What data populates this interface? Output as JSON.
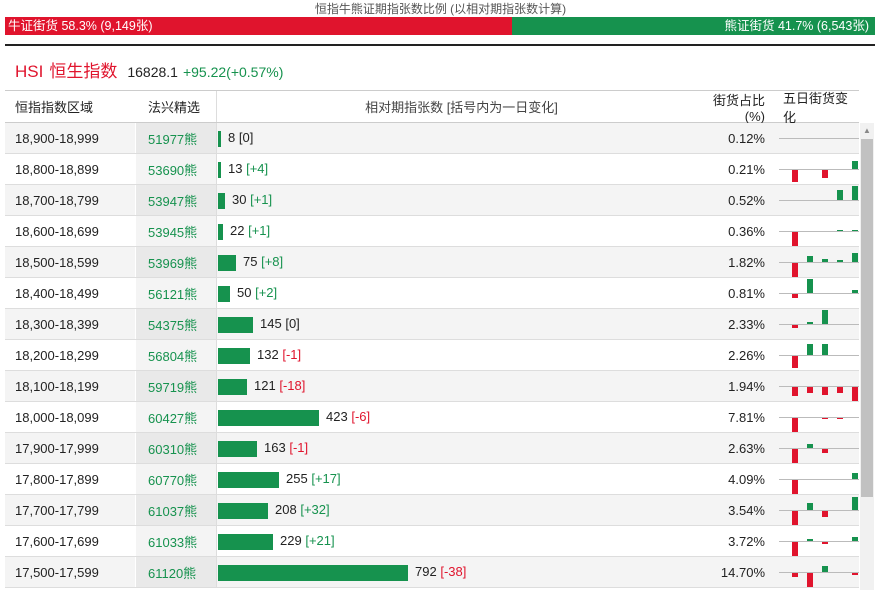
{
  "ratio": {
    "title": "恒指牛熊证期指张数比例 (以相对期指张数计算)",
    "bull_label": "牛证街货 58.3% (9,149张)",
    "bear_label": "熊证街货 41.7% (6,543张)",
    "bull_fraction": 0.583,
    "bull_color": "#e0142d",
    "bear_color": "#16924e"
  },
  "index": {
    "code": "HSI",
    "name": "恒生指数",
    "price": "16828.1",
    "change": "+95.22(+0.57%)"
  },
  "table": {
    "headers": {
      "range": "恒指指数区域",
      "pick": "法兴精选",
      "oi": "相对期指张数 [括号内为一日变化]",
      "share": "街货占比(%)",
      "five_day": "五日街货变化"
    },
    "rows": [
      {
        "range": "18,900-18,999",
        "pick": "51977熊",
        "count": 8,
        "count_text": "8",
        "change": "[0]",
        "change_dir": "flat",
        "share": "0.12%",
        "spark": [
          0,
          0,
          0,
          0,
          0
        ]
      },
      {
        "range": "18,800-18,899",
        "pick": "53690熊",
        "count": 13,
        "count_text": "13",
        "change": "[+4]",
        "change_dir": "up",
        "share": "0.21%",
        "spark": [
          -12,
          0,
          -8,
          0,
          8
        ]
      },
      {
        "range": "18,700-18,799",
        "pick": "53947熊",
        "count": 30,
        "count_text": "30",
        "change": "[+1]",
        "change_dir": "up",
        "share": "0.52%",
        "spark": [
          0,
          0,
          0,
          10,
          14
        ]
      },
      {
        "range": "18,600-18,699",
        "pick": "53945熊",
        "count": 22,
        "count_text": "22",
        "change": "[+1]",
        "change_dir": "up",
        "share": "0.36%",
        "spark": [
          -14,
          0,
          0,
          1,
          1
        ]
      },
      {
        "range": "18,500-18,599",
        "pick": "53969熊",
        "count": 75,
        "count_text": "75",
        "change": "[+8]",
        "change_dir": "up",
        "share": "1.82%",
        "spark": [
          -14,
          6,
          3,
          2,
          9
        ]
      },
      {
        "range": "18,400-18,499",
        "pick": "56121熊",
        "count": 50,
        "count_text": "50",
        "change": "[+2]",
        "change_dir": "up",
        "share": "0.81%",
        "spark": [
          -4,
          14,
          0,
          0,
          3
        ]
      },
      {
        "range": "18,300-18,399",
        "pick": "54375熊",
        "count": 145,
        "count_text": "145",
        "change": "[0]",
        "change_dir": "flat",
        "share": "2.33%",
        "spark": [
          -3,
          2,
          14,
          0,
          0
        ]
      },
      {
        "range": "18,200-18,299",
        "pick": "56804熊",
        "count": 132,
        "count_text": "132",
        "change": "[-1]",
        "change_dir": "down",
        "share": "2.26%",
        "spark": [
          -12,
          11,
          11,
          0,
          0
        ]
      },
      {
        "range": "18,100-18,199",
        "pick": "59719熊",
        "count": 121,
        "count_text": "121",
        "change": "[-18]",
        "change_dir": "down",
        "share": "1.94%",
        "spark": [
          -9,
          -6,
          -8,
          -6,
          -14
        ]
      },
      {
        "range": "18,000-18,099",
        "pick": "60427熊",
        "count": 423,
        "count_text": "423",
        "change": "[-6]",
        "change_dir": "down",
        "share": "7.81%",
        "spark": [
          -14,
          0,
          -1,
          -1,
          0
        ]
      },
      {
        "range": "17,900-17,999",
        "pick": "60310熊",
        "count": 163,
        "count_text": "163",
        "change": "[-1]",
        "change_dir": "down",
        "share": "2.63%",
        "spark": [
          -14,
          4,
          -4,
          0,
          0
        ]
      },
      {
        "range": "17,800-17,899",
        "pick": "60770熊",
        "count": 255,
        "count_text": "255",
        "change": "[+17]",
        "change_dir": "up",
        "share": "4.09%",
        "spark": [
          -14,
          0,
          0,
          0,
          6
        ]
      },
      {
        "range": "17,700-17,799",
        "pick": "61037熊",
        "count": 208,
        "count_text": "208",
        "change": "[+32]",
        "change_dir": "up",
        "share": "3.54%",
        "spark": [
          -14,
          7,
          -6,
          0,
          13
        ]
      },
      {
        "range": "17,600-17,699",
        "pick": "61033熊",
        "count": 229,
        "count_text": "229",
        "change": "[+21]",
        "change_dir": "up",
        "share": "3.72%",
        "spark": [
          -14,
          2,
          -2,
          0,
          4
        ]
      },
      {
        "range": "17,500-17,599",
        "pick": "61120熊",
        "count": 792,
        "count_text": "792",
        "change": "[-38]",
        "change_dir": "down",
        "share": "14.70%",
        "spark": [
          -4,
          -14,
          6,
          0,
          -2
        ]
      }
    ]
  },
  "colors": {
    "bear": "#16924e",
    "bull": "#e0142d"
  }
}
